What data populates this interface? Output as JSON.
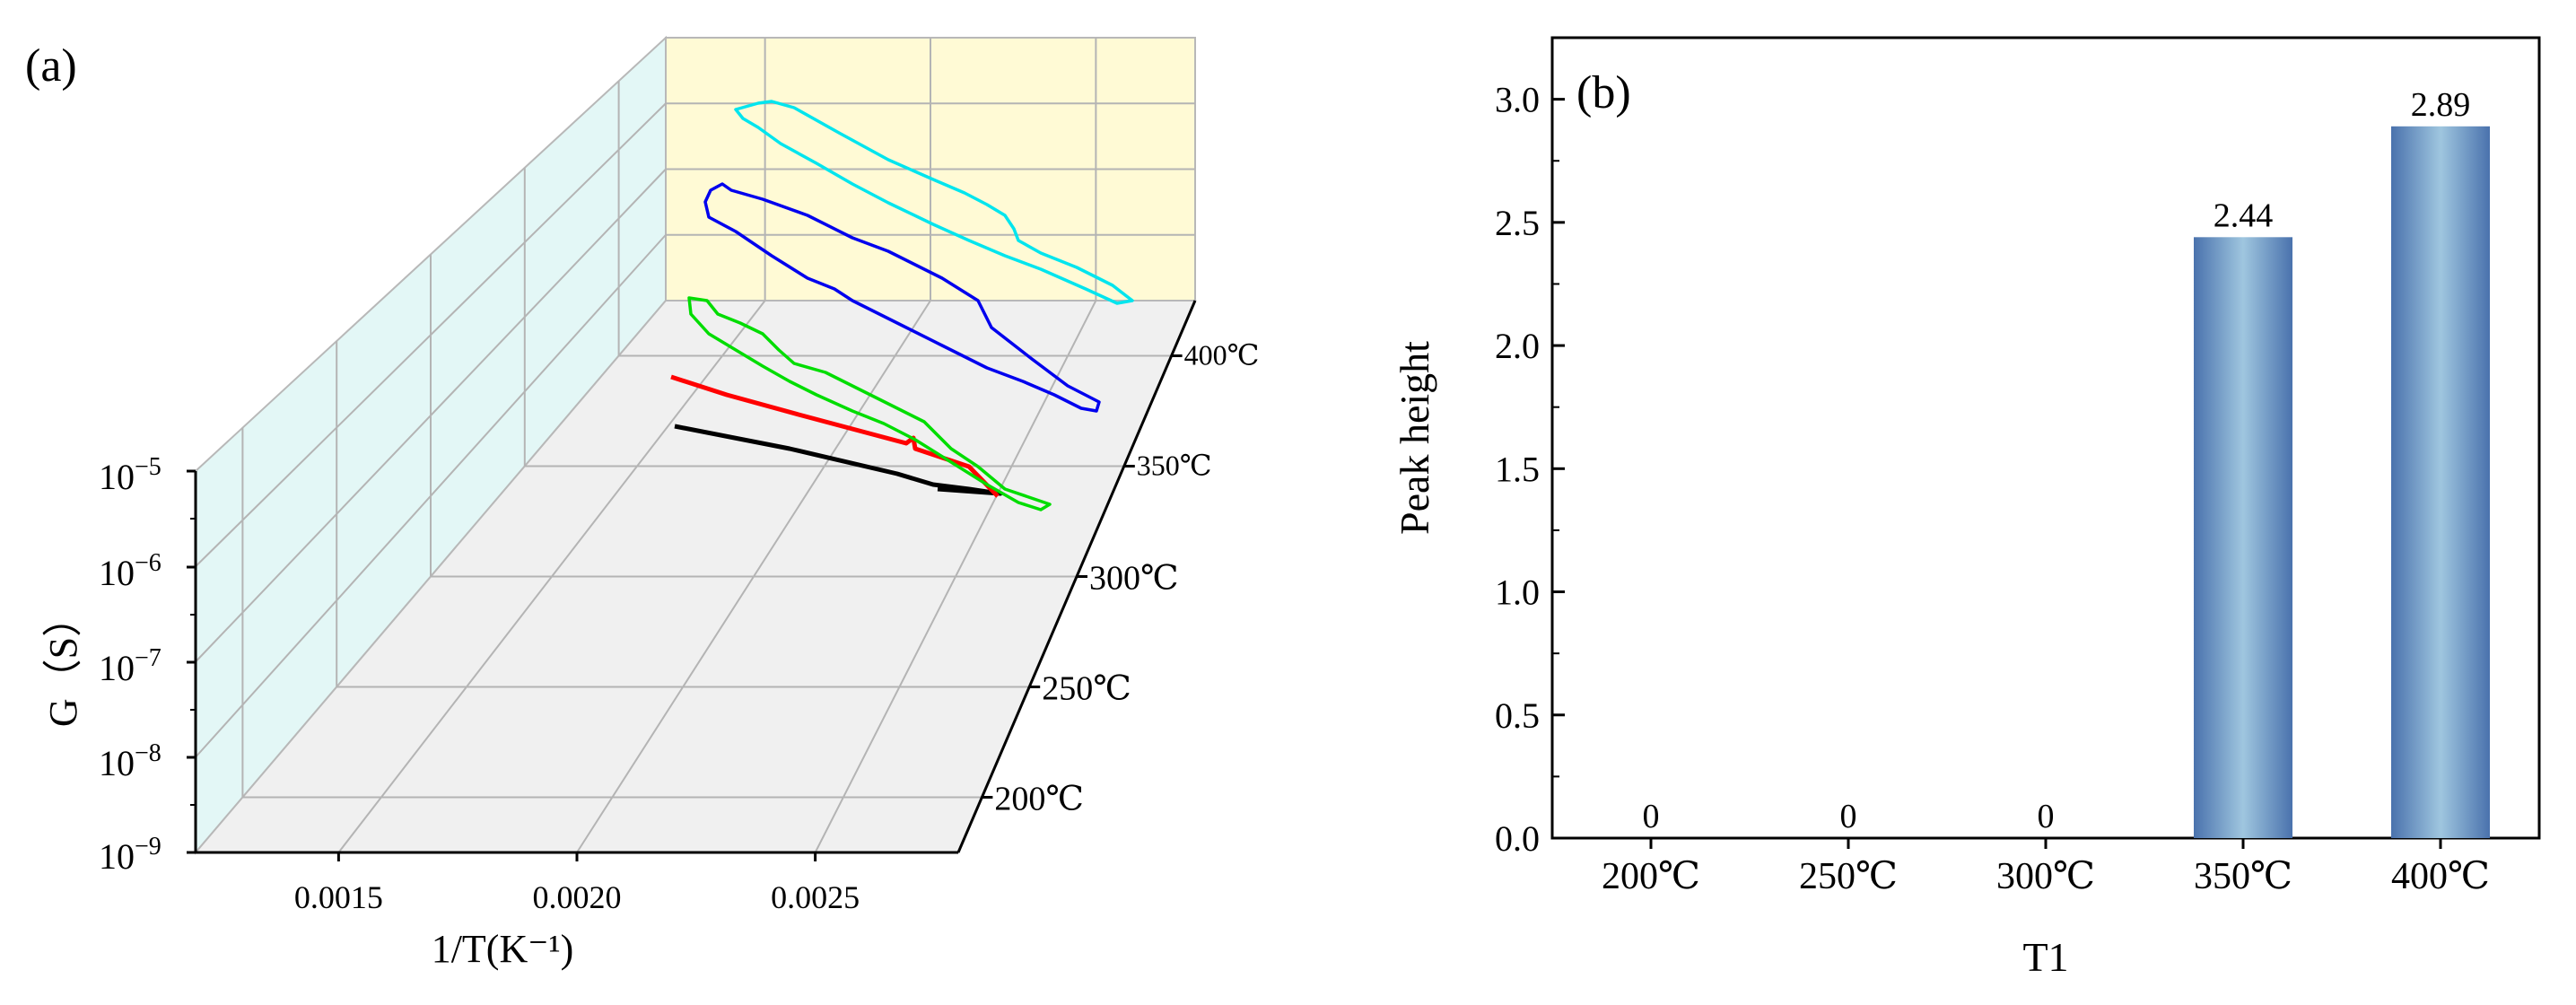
{
  "chart_data": [
    {
      "type": "line",
      "panel_label": "(a)",
      "title": "",
      "xlabel": "1/T(K⁻¹)",
      "ylabel": "G（S）",
      "depth_label": "",
      "xlim": [
        0.0012,
        0.0028
      ],
      "x_ticks": [
        "0.0015",
        "0.0020",
        "0.0025"
      ],
      "x_tick_values": [
        0.0015,
        0.002,
        0.0025
      ],
      "y_ticks": [
        {
          "base": "10",
          "exp": "−5"
        },
        {
          "base": "10",
          "exp": "−6"
        },
        {
          "base": "10",
          "exp": "−7"
        },
        {
          "base": "10",
          "exp": "−8"
        },
        {
          "base": "10",
          "exp": "−9"
        }
      ],
      "depth_ticks": [
        "200℃",
        "250℃",
        "300℃",
        "350℃",
        "400℃"
      ],
      "series": [
        {
          "name": "200℃",
          "color": "#000000",
          "x_range": [
            0.0022,
            0.00275
          ]
        },
        {
          "name": "250℃",
          "color": "#ff0000",
          "x_range": [
            0.0022,
            0.00275
          ]
        },
        {
          "name": "300℃",
          "color": "#00dd00",
          "x_range": [
            0.0022,
            0.00275
          ]
        },
        {
          "name": "350℃",
          "color": "#0000ee",
          "x_range": [
            0.0022,
            0.00275
          ]
        },
        {
          "name": "400℃",
          "color": "#00e5ee",
          "x_range": [
            0.0022,
            0.00275
          ]
        }
      ],
      "colors": {
        "back_wall": "#fffad5",
        "side_wall": "#e3f7f6",
        "floor": "#f0f0f0",
        "grid": "#b4b4b4"
      }
    },
    {
      "type": "bar",
      "panel_label": "(b)",
      "title": "",
      "xlabel": "T1",
      "ylabel": "Peak height",
      "categories": [
        "200℃",
        "250℃",
        "300℃",
        "350℃",
        "400℃"
      ],
      "values": [
        0,
        0,
        0,
        2.44,
        2.89
      ],
      "value_labels": [
        "0",
        "0",
        "0",
        "2.44",
        "2.89"
      ],
      "ylim": [
        0,
        3.25
      ],
      "y_ticks": [
        "0.0",
        "0.5",
        "1.0",
        "1.5",
        "2.0",
        "2.5",
        "3.0"
      ],
      "y_tick_values": [
        0,
        0.5,
        1.0,
        1.5,
        2.0,
        2.5,
        3.0
      ],
      "bar_color": "#4a72ad",
      "grid": false
    }
  ]
}
